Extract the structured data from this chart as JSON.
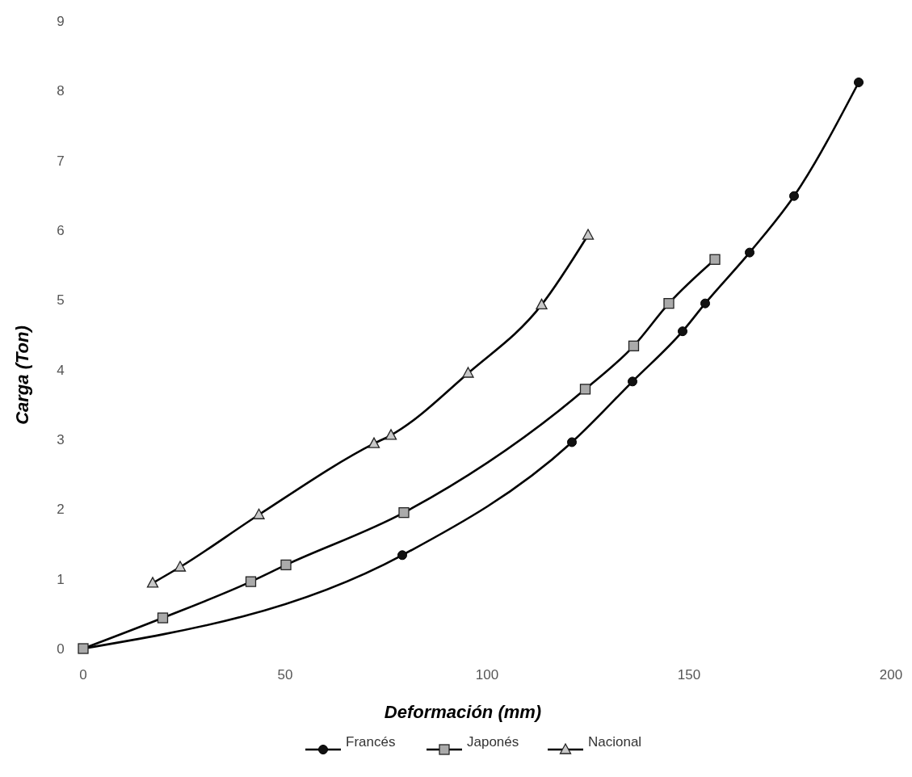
{
  "chart_data": {
    "type": "line",
    "xlabel": "Deformación (mm)",
    "ylabel": "Carga (Ton)",
    "xlim": [
      0,
      200
    ],
    "xticks": [
      0,
      50,
      100,
      150,
      200
    ],
    "ylim": [
      0,
      9
    ],
    "yticks": [
      0,
      1,
      2,
      3,
      4,
      5,
      6,
      7,
      8,
      9
    ],
    "grid": false,
    "legend": "bottom",
    "line_style": "solid",
    "series": [
      {
        "name": "Francés",
        "color": "#000000",
        "marker": "circle",
        "x": [
          0,
          79,
          121,
          136,
          148.4,
          154,
          165,
          176,
          192
        ],
        "values": [
          0,
          1.34,
          2.96,
          3.83,
          4.55,
          4.95,
          5.68,
          6.49,
          8.12
        ]
      },
      {
        "name": "Japonés",
        "color": "#000000",
        "marker": "square",
        "x": [
          0,
          19.7,
          41.5,
          50.2,
          79.4,
          124.3,
          136.3,
          145,
          156.4
        ],
        "values": [
          0,
          0.44,
          0.96,
          1.2,
          1.95,
          3.72,
          4.34,
          4.95,
          5.58
        ]
      },
      {
        "name": "Nacional",
        "color": "#000000",
        "marker": "triangle",
        "x": [
          17.2,
          24,
          43.5,
          72,
          76.2,
          95.3,
          113.5,
          125
        ],
        "values": [
          0.94,
          1.17,
          1.92,
          2.94,
          3.06,
          3.95,
          4.93,
          5.93
        ]
      }
    ]
  }
}
